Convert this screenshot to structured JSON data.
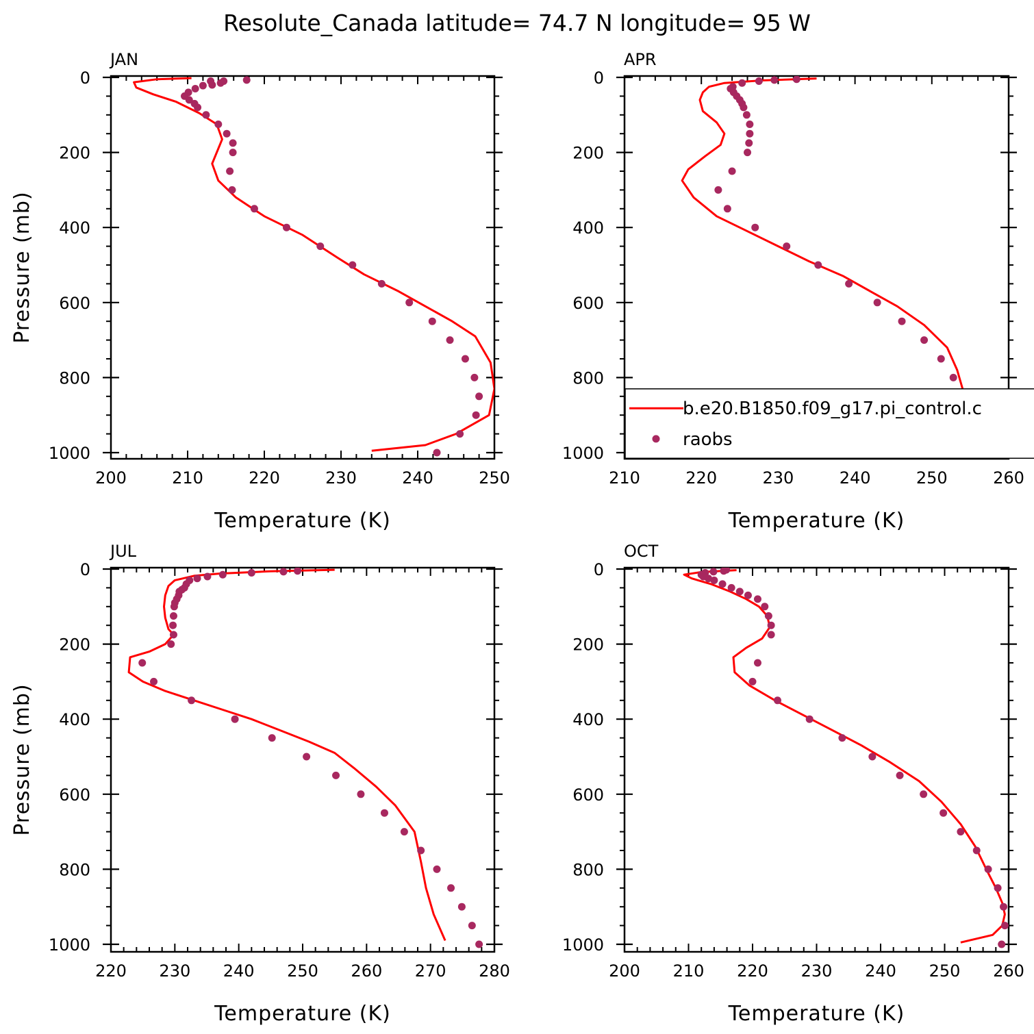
{
  "figure_title": "Resolute_Canada  latitude= 74.7 N longitude= 95 W",
  "colors": {
    "model_line": "#ff0000",
    "obs_marker": "#a8285f",
    "axes": "#000000"
  },
  "legend": {
    "panel_index": 1,
    "model_label": "b.e20.B1850.f09_g17.pi_control.c",
    "obs_label": "raobs"
  },
  "chart_data": [
    {
      "type": "line",
      "panel_title": "JAN",
      "xlabel": "Temperature (K)",
      "ylabel": "Pressure (mb)",
      "xlim": [
        200,
        250
      ],
      "ylim": [
        1000,
        0
      ],
      "y_inverted": true,
      "xticks": [
        200,
        210,
        220,
        230,
        240,
        250
      ],
      "yticks": [
        0,
        200,
        400,
        600,
        800,
        1000
      ],
      "series": [
        {
          "kind": "line",
          "x": [
            210.5,
            206.0,
            203.0,
            203.3,
            205.5,
            208.5,
            211.5,
            213.8,
            214.5,
            213.2,
            214.0,
            216.3,
            220.0,
            225.0,
            229.5,
            233.0,
            237.5,
            241.0,
            244.5,
            247.5,
            249.5,
            250.0,
            249.3,
            245.0,
            241.0,
            234.0
          ],
          "y": [
            2,
            5,
            13,
            27,
            45,
            65,
            95,
            125,
            165,
            230,
            275,
            320,
            370,
            420,
            480,
            525,
            570,
            610,
            650,
            690,
            760,
            830,
            900,
            950,
            980,
            995
          ]
        },
        {
          "kind": "scatter",
          "x": [
            217.7,
            214.7,
            214.3,
            213.2,
            213.0,
            212.0,
            211.0,
            210.1,
            209.6,
            210.2,
            210.9,
            211.3,
            212.4,
            214.0,
            215.1,
            215.9,
            215.9,
            215.5,
            215.8,
            218.7,
            222.9,
            227.3,
            231.5,
            235.3,
            238.9,
            241.9,
            244.2,
            246.2,
            247.4,
            248.0,
            247.6,
            245.5,
            242.5
          ],
          "y": [
            7,
            10,
            15,
            20,
            10,
            22,
            30,
            40,
            50,
            60,
            70,
            80,
            100,
            125,
            150,
            175,
            200,
            250,
            300,
            350,
            400,
            450,
            500,
            550,
            600,
            650,
            700,
            750,
            800,
            850,
            900,
            950,
            1000
          ]
        }
      ]
    },
    {
      "type": "line",
      "panel_title": "APR",
      "xlabel": "Temperature (K)",
      "ylabel": "",
      "xlim": [
        210,
        260
      ],
      "ylim": [
        1000,
        0
      ],
      "y_inverted": true,
      "xticks": [
        210,
        220,
        230,
        240,
        250,
        260
      ],
      "yticks": [
        0,
        200,
        400,
        600,
        800,
        1000
      ],
      "series": [
        {
          "kind": "line",
          "x": [
            235.0,
            228.0,
            223.0,
            221.0,
            220.2,
            219.8,
            220.2,
            222.0,
            223.0,
            222.5,
            220.5,
            218.3,
            217.5,
            219.0,
            222.0,
            226.0,
            230.0,
            234.0,
            238.5,
            242.0,
            245.5,
            249.0,
            252.0,
            253.3,
            254.0,
            254.2,
            253.5,
            251.5,
            249.0,
            246.0
          ],
          "y": [
            3,
            8,
            15,
            25,
            40,
            60,
            90,
            120,
            150,
            180,
            210,
            245,
            275,
            320,
            370,
            410,
            450,
            490,
            530,
            570,
            610,
            660,
            720,
            780,
            830,
            880,
            930,
            960,
            980,
            995
          ]
        },
        {
          "kind": "scatter",
          "x": [
            232.4,
            229.5,
            227.5,
            225.3,
            224.1,
            223.8,
            224.2,
            224.6,
            225.0,
            225.3,
            225.5,
            225.9,
            226.3,
            226.3,
            226.2,
            226.0,
            224.0,
            222.2,
            223.4,
            227.0,
            231.1,
            235.2,
            239.2,
            242.9,
            246.1,
            249.0,
            251.2,
            252.8,
            253.7,
            254.1,
            253.1,
            250.8
          ],
          "y": [
            5,
            7,
            10,
            15,
            25,
            30,
            40,
            50,
            60,
            70,
            80,
            100,
            125,
            150,
            175,
            200,
            250,
            300,
            350,
            400,
            450,
            500,
            550,
            600,
            650,
            700,
            750,
            800,
            850,
            900,
            950,
            1000
          ]
        }
      ]
    },
    {
      "type": "line",
      "panel_title": "JUL",
      "xlabel": "Temperature (K)",
      "ylabel": "Pressure (mb)",
      "xlim": [
        220,
        280
      ],
      "ylim": [
        1000,
        0
      ],
      "y_inverted": true,
      "xticks": [
        220,
        230,
        240,
        250,
        260,
        270,
        280
      ],
      "yticks": [
        0,
        200,
        400,
        600,
        800,
        1000
      ],
      "series": [
        {
          "kind": "line",
          "x": [
            255.0,
            245.0,
            237.0,
            233.0,
            230.0,
            229.0,
            228.5,
            228.3,
            228.5,
            229.0,
            229.8,
            228.5,
            226.0,
            223.0,
            222.8,
            225.0,
            228.5,
            233.0,
            237.5,
            242.0,
            246.5,
            251.0,
            255.0,
            258.0,
            261.5,
            264.5,
            267.5,
            268.5,
            269.3,
            270.5,
            272.3
          ],
          "y": [
            2,
            6,
            12,
            18,
            30,
            45,
            70,
            100,
            130,
            160,
            175,
            200,
            220,
            235,
            275,
            300,
            325,
            350,
            375,
            400,
            430,
            460,
            490,
            530,
            580,
            630,
            700,
            780,
            850,
            920,
            990
          ]
        },
        {
          "kind": "scatter",
          "x": [
            249.2,
            247.0,
            242.0,
            237.5,
            235.1,
            233.5,
            232.3,
            231.8,
            231.5,
            231.1,
            230.7,
            230.6,
            230.3,
            230.0,
            229.9,
            229.8,
            229.7,
            229.8,
            229.4,
            224.9,
            226.7,
            232.6,
            239.4,
            245.2,
            250.6,
            255.2,
            259.1,
            262.8,
            265.9,
            268.5,
            271.0,
            273.2,
            274.9,
            276.5,
            277.6
          ],
          "y": [
            5,
            7,
            10,
            15,
            20,
            25,
            30,
            40,
            50,
            55,
            60,
            70,
            80,
            90,
            100,
            125,
            150,
            175,
            200,
            250,
            300,
            350,
            400,
            450,
            500,
            550,
            600,
            650,
            700,
            750,
            800,
            850,
            900,
            950,
            1000
          ]
        }
      ]
    },
    {
      "type": "line",
      "panel_title": "OCT",
      "xlabel": "Temperature (K)",
      "ylabel": "",
      "xlim": [
        200,
        260
      ],
      "ylim": [
        1000,
        0
      ],
      "y_inverted": true,
      "xticks": [
        200,
        210,
        220,
        230,
        240,
        250,
        260
      ],
      "yticks": [
        0,
        200,
        400,
        600,
        800,
        1000
      ],
      "series": [
        {
          "kind": "line",
          "x": [
            217.5,
            212.0,
            209.3,
            210.5,
            213.5,
            216.5,
            219.0,
            221.0,
            222.3,
            222.7,
            221.5,
            219.0,
            217.0,
            217.2,
            219.5,
            223.5,
            228.0,
            232.5,
            237.0,
            241.5,
            246.0,
            249.5,
            252.5,
            254.8,
            256.5,
            258.0,
            259.0,
            259.4,
            259.0,
            257.5,
            252.5
          ],
          "y": [
            3,
            8,
            15,
            25,
            40,
            60,
            80,
            100,
            125,
            155,
            185,
            210,
            235,
            275,
            310,
            350,
            390,
            430,
            470,
            515,
            565,
            620,
            680,
            740,
            800,
            850,
            890,
            920,
            950,
            975,
            995
          ]
        },
        {
          "kind": "scatter",
          "x": [
            215.9,
            215.5,
            213.9,
            212.6,
            212.0,
            212.3,
            213.1,
            214.0,
            215.3,
            216.7,
            218.0,
            219.3,
            220.8,
            221.9,
            222.5,
            222.9,
            222.9,
            220.8,
            220.0,
            223.9,
            228.9,
            234.0,
            238.7,
            243.0,
            246.7,
            249.8,
            252.5,
            255.0,
            256.8,
            258.3,
            259.2,
            259.4,
            258.9
          ],
          "y": [
            2,
            5,
            7,
            10,
            15,
            20,
            25,
            30,
            40,
            50,
            60,
            70,
            80,
            100,
            125,
            150,
            175,
            250,
            300,
            350,
            400,
            450,
            500,
            550,
            600,
            650,
            700,
            750,
            800,
            850,
            900,
            950,
            1000
          ]
        }
      ]
    }
  ]
}
